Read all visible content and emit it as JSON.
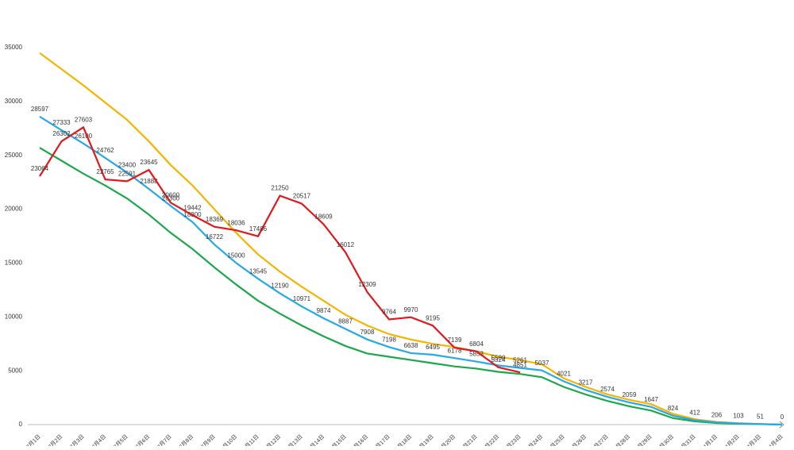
{
  "chart_data": {
    "type": "line",
    "categories": [
      "3月1日",
      "3月2日",
      "3月3日",
      "3月4日",
      "3月5日",
      "3月6日",
      "3月7日",
      "3月8日",
      "3月9日",
      "3月10日",
      "3月11日",
      "3月12日",
      "3月13日",
      "3月14日",
      "3月15日",
      "3月16日",
      "3月17日",
      "3月18日",
      "3月19日",
      "3月20日",
      "3月21日",
      "3月22日",
      "3月23日",
      "3月24日",
      "3月25日",
      "3月26日",
      "3月27日",
      "3月28日",
      "3月29日",
      "3月30日",
      "3月31日",
      "4月1日",
      "4月2日",
      "4月3日",
      "4月4日"
    ],
    "series": [
      {
        "color": "#f4b400",
        "values": [
          34500,
          33000,
          31500,
          29900,
          28300,
          26300,
          24100,
          22200,
          20000,
          17800,
          15800,
          14200,
          12800,
          11500,
          10200,
          9200,
          8400,
          7900,
          7500,
          7200,
          6800,
          6300,
          6000,
          5600,
          4300,
          3500,
          2800,
          2300,
          1900,
          1000,
          500,
          250,
          130,
          60,
          0
        ],
        "labels": false
      },
      {
        "color": "#1ca84a",
        "values": [
          25700,
          24500,
          23300,
          22200,
          21000,
          19500,
          17800,
          16300,
          14600,
          13000,
          11500,
          10300,
          9200,
          8200,
          7300,
          6600,
          6300,
          6000,
          5700,
          5400,
          5200,
          4900,
          4700,
          4400,
          3500,
          2800,
          2200,
          1700,
          1300,
          600,
          300,
          150,
          80,
          40,
          0
        ],
        "labels": false
      },
      {
        "color": "#27a9e8",
        "values": [
          28597,
          27333,
          26100,
          24762,
          23400,
          21888,
          20300,
          18800,
          16722,
          15000,
          13545,
          12190,
          10971,
          9874,
          8887,
          7908,
          7198,
          6638,
          6495,
          6178,
          5853,
          5500,
          5261,
          5037,
          4021,
          3217,
          2574,
          2059,
          1647,
          824,
          412,
          206,
          103,
          51,
          0
        ],
        "labels": true
      },
      {
        "color": "#e0191c",
        "values": [
          23064,
          26302,
          27603,
          22765,
          22591,
          23645,
          20600,
          19442,
          18369,
          18036,
          17486,
          21250,
          20517,
          18609,
          16012,
          12309,
          9764,
          9970,
          9195,
          7139,
          6804,
          5324,
          4851,
          null,
          null,
          null,
          null,
          null,
          null,
          null,
          null,
          null,
          null,
          null,
          null
        ],
        "labels": true
      }
    ],
    "ylim": [
      0,
      35000
    ],
    "yticks": [
      0,
      5000,
      10000,
      15000,
      20000,
      25000,
      30000,
      35000
    ],
    "grid": false
  }
}
